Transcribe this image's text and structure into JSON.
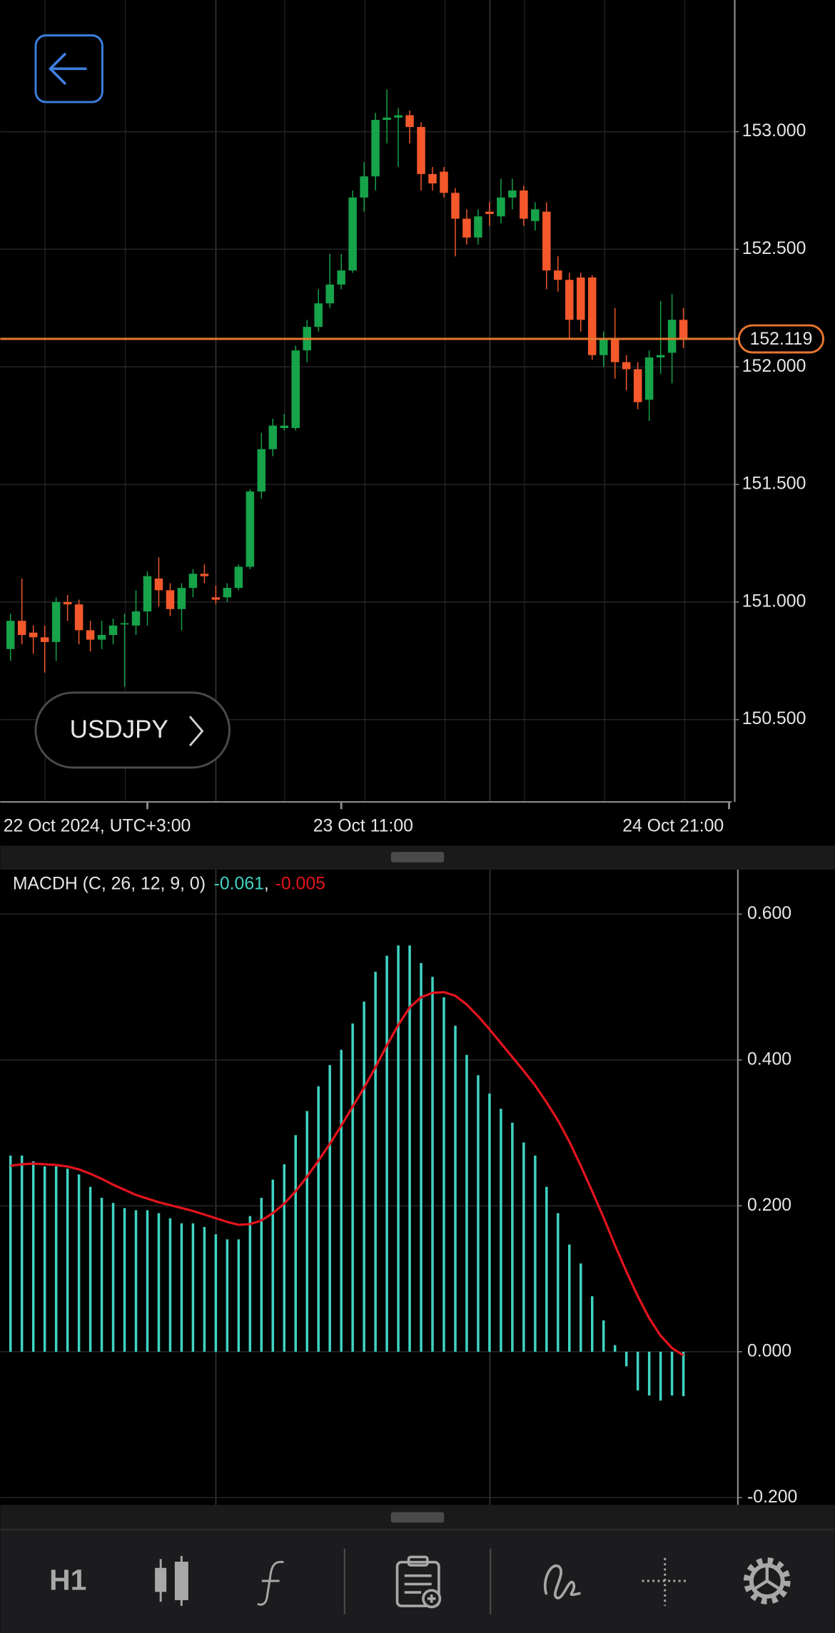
{
  "symbol": "USDJPY",
  "toolbar": {
    "timeframe": "H1"
  },
  "chart_data": [
    {
      "type": "candlestick",
      "open": [
        150.8,
        150.92,
        150.87,
        150.85,
        150.83,
        151.0,
        150.99,
        150.88,
        150.84,
        150.86,
        150.91,
        150.9,
        150.96,
        151.1,
        151.05,
        150.97,
        151.06,
        151.12,
        151.02,
        151.02,
        151.06,
        151.15,
        151.47,
        151.65,
        151.74,
        151.74,
        152.07,
        152.17,
        152.27,
        152.35,
        152.41,
        152.72,
        152.81,
        153.05,
        153.06,
        153.07,
        153.02,
        152.82,
        152.83,
        152.74,
        152.63,
        152.55,
        152.66,
        152.64,
        152.72,
        152.75,
        152.62,
        152.66,
        152.41,
        152.37,
        152.38,
        152.38,
        152.05,
        152.12,
        152.02,
        151.99,
        151.86,
        152.04,
        152.06,
        152.2
      ],
      "high": [
        150.95,
        151.1,
        150.9,
        150.9,
        151.02,
        151.03,
        151.01,
        150.92,
        150.92,
        150.93,
        150.95,
        151.05,
        151.13,
        151.19,
        151.08,
        151.08,
        151.14,
        151.16,
        151.07,
        151.08,
        151.16,
        151.48,
        151.72,
        151.78,
        151.8,
        152.09,
        152.2,
        152.33,
        152.48,
        152.48,
        152.75,
        152.87,
        153.08,
        153.18,
        153.1,
        153.09,
        153.04,
        152.85,
        152.85,
        152.76,
        152.67,
        152.67,
        152.7,
        152.8,
        152.8,
        152.77,
        152.7,
        152.7,
        152.47,
        152.4,
        152.4,
        152.39,
        152.15,
        152.25,
        152.05,
        152.02,
        152.07,
        152.28,
        152.31,
        152.25
      ],
      "low": [
        150.75,
        150.82,
        150.78,
        150.7,
        150.75,
        150.92,
        150.82,
        150.79,
        150.8,
        150.82,
        150.64,
        150.86,
        150.9,
        150.98,
        150.94,
        150.88,
        151.02,
        151.08,
        150.99,
        151.0,
        151.05,
        151.14,
        151.44,
        151.62,
        151.73,
        151.73,
        152.02,
        152.15,
        152.25,
        152.33,
        152.4,
        152.66,
        152.75,
        152.95,
        152.85,
        152.95,
        152.75,
        152.75,
        152.72,
        152.47,
        152.52,
        152.52,
        152.6,
        152.61,
        152.67,
        152.6,
        152.58,
        152.33,
        152.32,
        152.12,
        152.15,
        152.03,
        152.0,
        151.95,
        151.9,
        151.82,
        151.77,
        151.97,
        151.93,
        152.08
      ],
      "close": [
        150.92,
        150.86,
        150.85,
        150.83,
        151.0,
        150.99,
        150.88,
        150.84,
        150.86,
        150.9,
        150.91,
        150.96,
        151.11,
        151.05,
        150.97,
        151.06,
        151.12,
        151.11,
        151.01,
        151.06,
        151.15,
        151.47,
        151.65,
        151.75,
        151.75,
        152.07,
        152.17,
        152.27,
        152.35,
        152.41,
        152.72,
        152.81,
        153.05,
        153.06,
        153.07,
        153.02,
        152.82,
        152.78,
        152.74,
        152.63,
        152.55,
        152.64,
        152.65,
        152.72,
        152.75,
        152.63,
        152.67,
        152.41,
        152.37,
        152.2,
        152.2,
        152.05,
        152.12,
        152.02,
        151.99,
        151.85,
        152.04,
        152.05,
        152.2,
        152.119
      ],
      "up_color": "#16a34a",
      "down_color": "#f4582b",
      "xlim": [
        -0.9,
        63.5
      ],
      "xticks": [
        {
          "value": 12,
          "label": "22 Oct 2024, UTC+3:00"
        },
        {
          "value": 29,
          "label": "23 Oct 11:00"
        },
        {
          "value": 63,
          "label": "24 Oct 21:00"
        }
      ],
      "ylim": [
        150.15,
        153.56
      ],
      "yticks": [
        {
          "value": 150.5,
          "label": "150.500"
        },
        {
          "value": 151,
          "label": "151.000"
        },
        {
          "value": 151.5,
          "label": "151.500"
        },
        {
          "value": 152,
          "label": "152.000"
        },
        {
          "value": 152.5,
          "label": "152.500"
        },
        {
          "value": 153,
          "label": "153.000"
        }
      ],
      "current_price": 152.119,
      "current_price_color": "#e8772e",
      "grid": true
    },
    {
      "type": "bar",
      "title": "MACDH (C, 26, 12, 9, 0)",
      "legend_separator": ",",
      "series": [
        {
          "color": "#3fd3c3",
          "values": [
            0.269,
            0.269,
            0.261,
            0.254,
            0.254,
            0.251,
            0.243,
            0.226,
            0.211,
            0.204,
            0.197,
            0.194,
            0.194,
            0.19,
            0.183,
            0.176,
            0.176,
            0.171,
            0.161,
            0.154,
            0.154,
            0.186,
            0.211,
            0.236,
            0.257,
            0.297,
            0.33,
            0.364,
            0.393,
            0.414,
            0.45,
            0.48,
            0.521,
            0.543,
            0.557,
            0.557,
            0.533,
            0.514,
            0.486,
            0.447,
            0.407,
            0.379,
            0.354,
            0.333,
            0.314,
            0.287,
            0.269,
            0.226,
            0.19,
            0.147,
            0.121,
            0.076,
            0.043,
            0.009,
            -0.02,
            -0.053,
            -0.06,
            -0.067,
            -0.06,
            -0.061
          ]
        },
        {
          "type": "line",
          "color": "#e3141e",
          "values": [
            0.255,
            0.257,
            0.258,
            0.257,
            0.256,
            0.254,
            0.25,
            0.244,
            0.237,
            0.229,
            0.222,
            0.215,
            0.21,
            0.205,
            0.201,
            0.197,
            0.193,
            0.188,
            0.183,
            0.178,
            0.174,
            0.175,
            0.18,
            0.19,
            0.203,
            0.22,
            0.24,
            0.262,
            0.285,
            0.31,
            0.336,
            0.362,
            0.39,
            0.42,
            0.448,
            0.472,
            0.486,
            0.492,
            0.493,
            0.488,
            0.476,
            0.46,
            0.442,
            0.423,
            0.404,
            0.385,
            0.365,
            0.342,
            0.317,
            0.288,
            0.255,
            0.22,
            0.184,
            0.146,
            0.11,
            0.076,
            0.046,
            0.022,
            0.005,
            -0.005
          ]
        }
      ],
      "ylim": [
        -0.21,
        0.661
      ],
      "yticks": [
        {
          "value": -0.2,
          "label": "-0.200"
        },
        {
          "value": 0,
          "label": "0.000"
        },
        {
          "value": 0.2,
          "label": "0.200"
        },
        {
          "value": 0.4,
          "label": "0.400"
        },
        {
          "value": 0.6,
          "label": "0.600"
        }
      ],
      "grid": true
    }
  ]
}
